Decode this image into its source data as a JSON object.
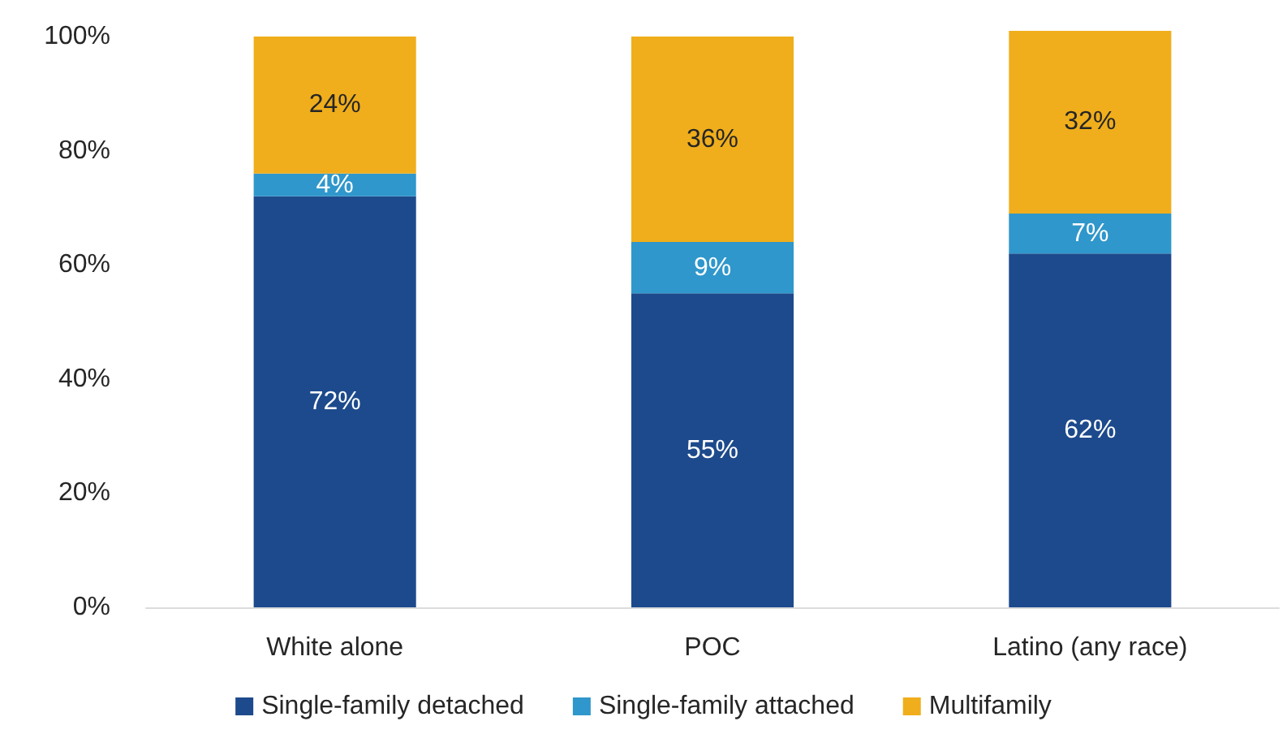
{
  "chart_data": {
    "type": "bar",
    "stacked": true,
    "categories": [
      "White alone",
      "POC",
      "Latino (any race)"
    ],
    "series": [
      {
        "name": "Single-family detached",
        "color": "#1d4a8c",
        "values": [
          72,
          55,
          62
        ],
        "value_labels": [
          "72%",
          "55%",
          "62%"
        ]
      },
      {
        "name": "Single-family attached",
        "color": "#2f97cb",
        "values": [
          4,
          9,
          7
        ],
        "value_labels": [
          "4%",
          "9%",
          "7%"
        ]
      },
      {
        "name": "Multifamily",
        "color": "#f0ae1c",
        "values": [
          24,
          36,
          32
        ],
        "value_labels": [
          "24%",
          "36%",
          "32%"
        ]
      }
    ],
    "ylim": [
      0,
      101
    ],
    "yticks": [
      {
        "value": 0,
        "label": "0%"
      },
      {
        "value": 20,
        "label": "20%"
      },
      {
        "value": 40,
        "label": "40%"
      },
      {
        "value": 60,
        "label": "60%"
      },
      {
        "value": 80,
        "label": "80%"
      },
      {
        "value": 100,
        "label": "100%"
      }
    ],
    "legend": "bottom"
  }
}
